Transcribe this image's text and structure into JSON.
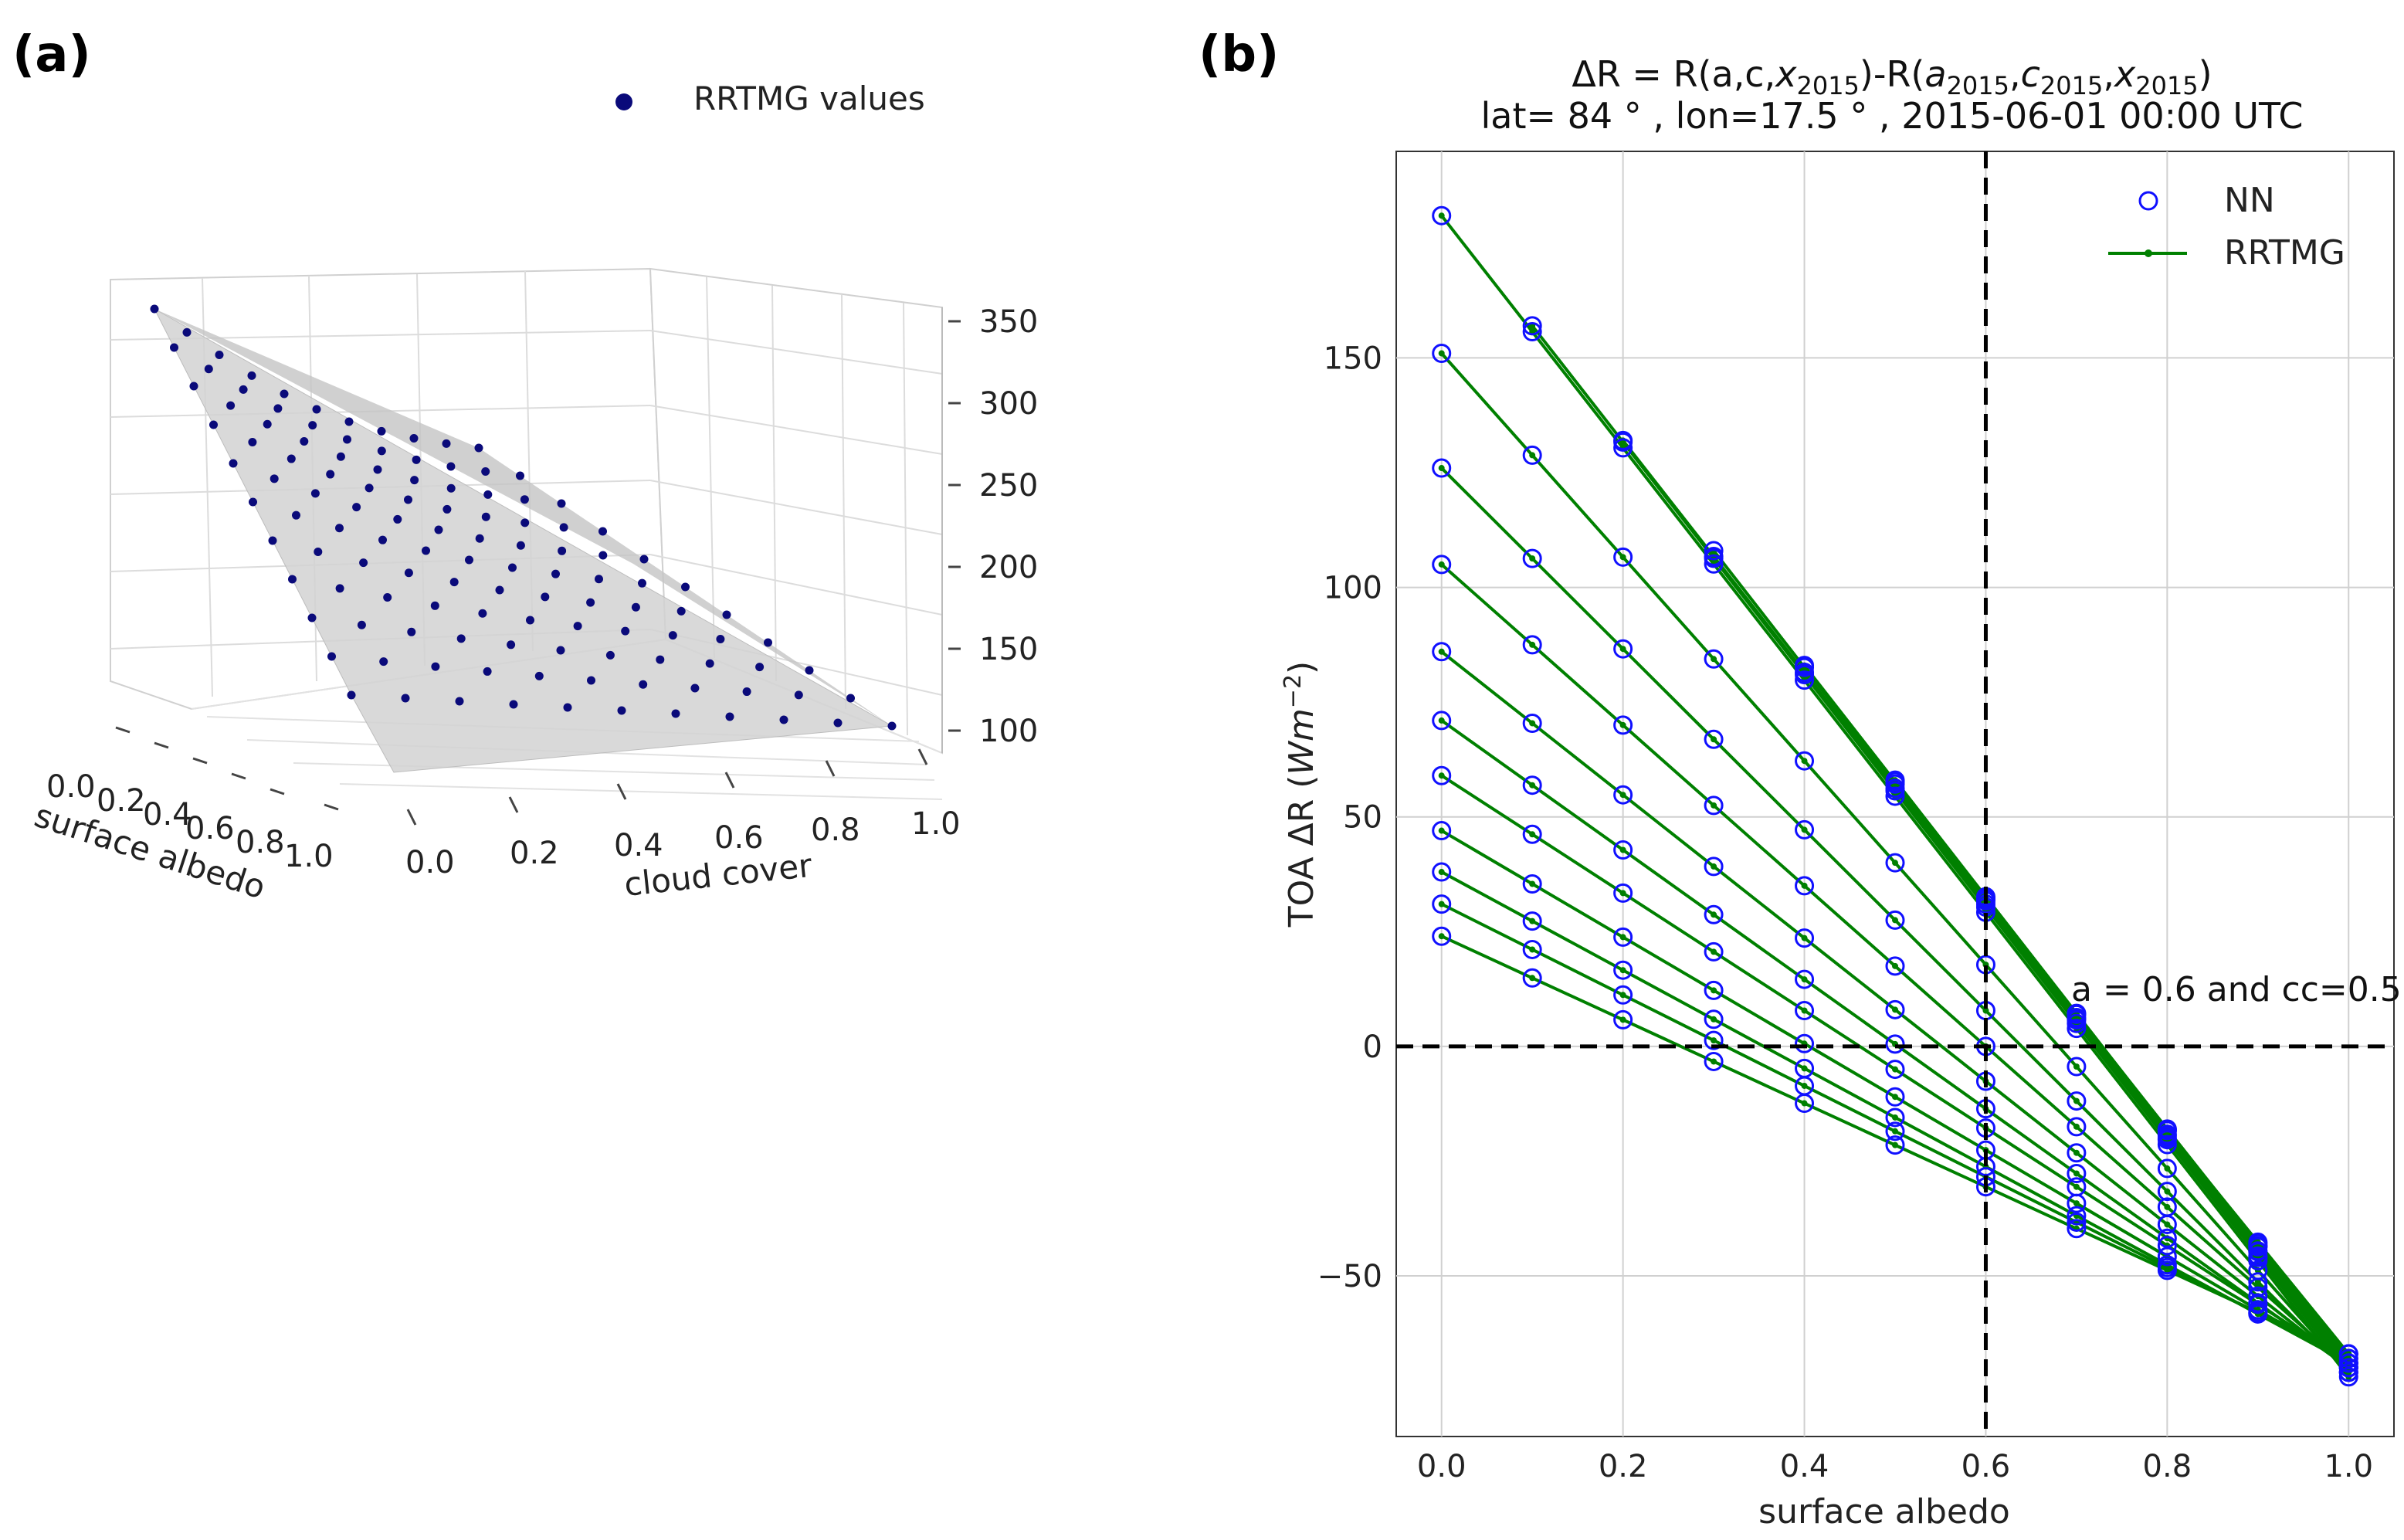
{
  "panel_a": {
    "label": "(a)",
    "legend": "RRTMG values",
    "z_ticks": [
      "100",
      "150",
      "200",
      "250",
      "300",
      "350"
    ],
    "x_ticks": [
      "0.0",
      "0.2",
      "0.4",
      "0.6",
      "0.8",
      "1.0"
    ],
    "x_label": "cloud cover",
    "y_ticks": [
      "0.0",
      "0.2",
      "0.4",
      "0.6",
      "0.8",
      "1.0"
    ],
    "y_label": "surface albedo"
  },
  "panel_b": {
    "label": "(b)",
    "title_lead": "ΔR = R(a,c,",
    "title_x": "x",
    "title_mid1": ")-R(",
    "title_a": "a",
    "title_sep1": ",",
    "title_c": "c",
    "title_sep2": ",",
    "title_close": ")",
    "title_sub": "2015",
    "title_line2": "lat= 84 ° , lon=17.5 ° , 2015-06-01 00:00 UTC",
    "ylabel_pre": "TOA ΔR (",
    "ylabel_unit": "Wm",
    "ylabel_exp": "−2",
    "ylabel_post": ")",
    "xlabel": "surface albedo",
    "annotation": "a = 0.6 and cc=0.5",
    "legend_nn": "NN",
    "legend_rrtmg": "RRTMG",
    "x_tick_labels": [
      "0.0",
      "0.2",
      "0.4",
      "0.6",
      "0.8",
      "1.0"
    ],
    "y_tick_labels": [
      "−50",
      "0",
      "50",
      "100",
      "150"
    ]
  },
  "chart_data": [
    {
      "type": "scatter3d",
      "title": "",
      "xlabel": "cloud cover",
      "ylabel": "surface albedo",
      "zlabel": "",
      "xlim": [
        0,
        1
      ],
      "ylim": [
        0,
        1
      ],
      "zlim": [
        90,
        370
      ],
      "series": [
        {
          "name": "RRTMG values",
          "grid": "11x11 grid of surface albedo vs cloud cover",
          "z_at_albedo0_cloud0": 360,
          "z_at_albedo1_cloud1": 105,
          "z_at_albedo1_cloud0": 95
        }
      ]
    },
    {
      "type": "line",
      "xlabel": "surface albedo",
      "ylabel": "TOA ΔR (Wm^-2)",
      "xlim": [
        -0.05,
        1.05
      ],
      "ylim": [
        -85,
        195
      ],
      "x_ticks": [
        0.0,
        0.2,
        0.4,
        0.6,
        0.8,
        1.0
      ],
      "y_ticks": [
        -50,
        0,
        50,
        100,
        150
      ],
      "reference_lines": {
        "vertical_x": 0.6,
        "horizontal_y": 0
      },
      "start_albedo": [
        0.0,
        0.0,
        0.0,
        0.0,
        0.0,
        0.0,
        0.0,
        0.0,
        0.0,
        0.0,
        0.0,
        0.1,
        0.2,
        0.3,
        0.4,
        0.5,
        0.6,
        0.7,
        0.8,
        0.9
      ],
      "start_value": [
        181,
        151,
        126,
        105,
        86,
        71,
        59,
        47,
        38,
        31,
        24,
        157,
        132,
        108,
        83,
        58,
        32,
        6,
        -20,
        -46
      ],
      "end_value": [
        -72,
        -71,
        -71,
        -70,
        -70,
        -70,
        -69,
        -69,
        -69,
        -68,
        -67,
        -71,
        -70,
        -70,
        -69,
        -69,
        -68,
        -67,
        -67,
        -67
      ],
      "series": [
        {
          "name": "NN"
        },
        {
          "name": "RRTMG"
        }
      ]
    }
  ]
}
